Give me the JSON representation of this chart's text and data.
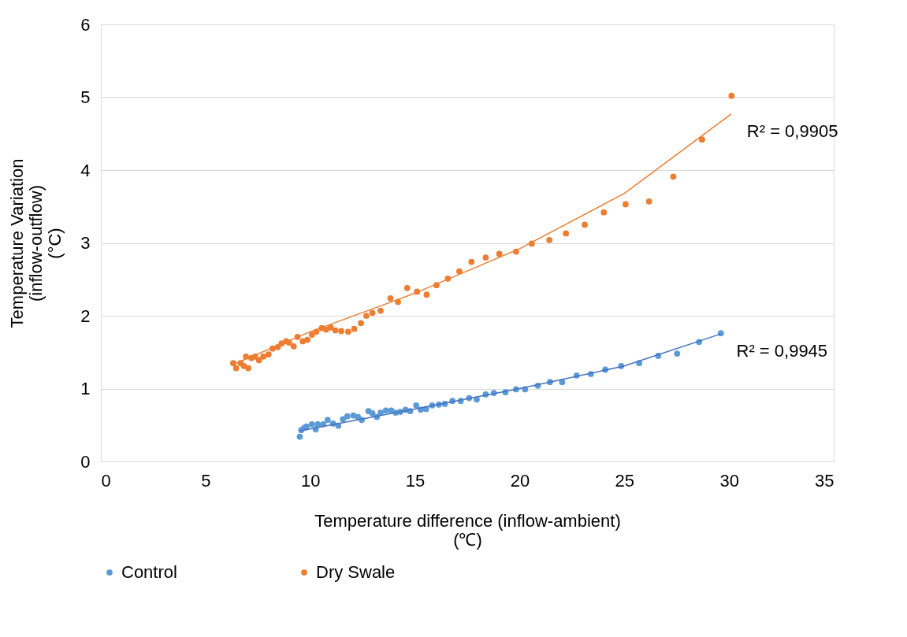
{
  "chart_data": {
    "type": "scatter",
    "xlabel": "Temperature difference (inflow-ambient)\n(℃)",
    "ylabel": "Temperature Variation\n(inflow-outflow)\n(°C)",
    "xlim": [
      0,
      35
    ],
    "xticks": [
      0,
      5,
      10,
      15,
      20,
      25,
      30,
      35
    ],
    "ylim": [
      0,
      6
    ],
    "yticks": [
      0,
      1,
      2,
      3,
      4,
      5,
      6
    ],
    "grid": "y",
    "legend": "bottom",
    "series": [
      {
        "name": "Control",
        "color": "#5b9bd5",
        "marker": "circle",
        "x": [
          9.5,
          9.57,
          9.71,
          9.82,
          10.08,
          10.26,
          10.36,
          10.62,
          10.83,
          11.09,
          11.34,
          11.56,
          11.77,
          12.06,
          12.28,
          12.46,
          12.78,
          12.97,
          13.18,
          13.36,
          13.61,
          13.87,
          14.08,
          14.3,
          14.55,
          14.77,
          15.06,
          15.28,
          15.53,
          15.82,
          16.14,
          16.43,
          16.79,
          17.19,
          17.59,
          17.95,
          18.38,
          18.77,
          19.32,
          19.83,
          20.26,
          20.87,
          21.45,
          22.03,
          22.72,
          23.4,
          24.09,
          24.85,
          25.71,
          26.62,
          27.52,
          28.57,
          29.61
        ],
        "values": [
          0.34,
          0.43,
          0.46,
          0.48,
          0.51,
          0.44,
          0.51,
          0.51,
          0.57,
          0.52,
          0.49,
          0.58,
          0.62,
          0.63,
          0.61,
          0.57,
          0.69,
          0.66,
          0.61,
          0.67,
          0.7,
          0.7,
          0.67,
          0.68,
          0.71,
          0.69,
          0.77,
          0.71,
          0.72,
          0.77,
          0.78,
          0.79,
          0.83,
          0.83,
          0.87,
          0.85,
          0.92,
          0.94,
          0.95,
          0.99,
          0.99,
          1.04,
          1.09,
          1.09,
          1.18,
          1.2,
          1.26,
          1.31,
          1.35,
          1.45,
          1.48,
          1.64,
          1.76
        ]
      },
      {
        "name": "Dry Swale",
        "color": "#ed7d31",
        "marker": "circle",
        "x": [
          6.32,
          6.46,
          6.68,
          6.83,
          6.93,
          7.04,
          7.19,
          7.37,
          7.55,
          7.76,
          8.01,
          8.2,
          8.45,
          8.63,
          8.85,
          8.99,
          9.21,
          9.39,
          9.64,
          9.86,
          10.08,
          10.29,
          10.55,
          10.76,
          10.98,
          11.2,
          11.48,
          11.81,
          12.1,
          12.42,
          12.68,
          12.97,
          13.36,
          13.83,
          14.19,
          14.63,
          15.1,
          15.56,
          16.03,
          16.57,
          17.12,
          17.7,
          18.38,
          19.03,
          19.83,
          20.58,
          21.42,
          22.21,
          23.11,
          24.02,
          25.06,
          26.18,
          27.34,
          28.71,
          30.12
        ],
        "values": [
          1.35,
          1.28,
          1.35,
          1.31,
          1.44,
          1.28,
          1.42,
          1.44,
          1.39,
          1.44,
          1.47,
          1.55,
          1.57,
          1.62,
          1.65,
          1.63,
          1.58,
          1.71,
          1.65,
          1.67,
          1.74,
          1.78,
          1.83,
          1.81,
          1.84,
          1.8,
          1.79,
          1.78,
          1.82,
          1.9,
          2.0,
          2.04,
          2.07,
          2.24,
          2.19,
          2.38,
          2.33,
          2.29,
          2.42,
          2.51,
          2.61,
          2.74,
          2.8,
          2.85,
          2.88,
          2.99,
          3.04,
          3.13,
          3.25,
          3.42,
          3.53,
          3.57,
          3.91,
          4.42,
          5.02
        ]
      },
      {
        "type": "line",
        "marker": "none",
        "color": "#4472c4",
        "x": [
          9.5,
          15,
          20,
          25,
          29.6
        ],
        "values": [
          0.42,
          0.72,
          1.0,
          1.31,
          1.75
        ]
      },
      {
        "type": "line",
        "marker": "none",
        "color": "#ed7d31",
        "x": [
          6.3,
          10,
          15,
          20,
          25,
          30.1
        ],
        "values": [
          1.33,
          1.78,
          2.31,
          2.92,
          3.68,
          4.77
        ]
      }
    ],
    "annotations": [
      "R² = 0,9905",
      "R² = 0,9945"
    ]
  }
}
